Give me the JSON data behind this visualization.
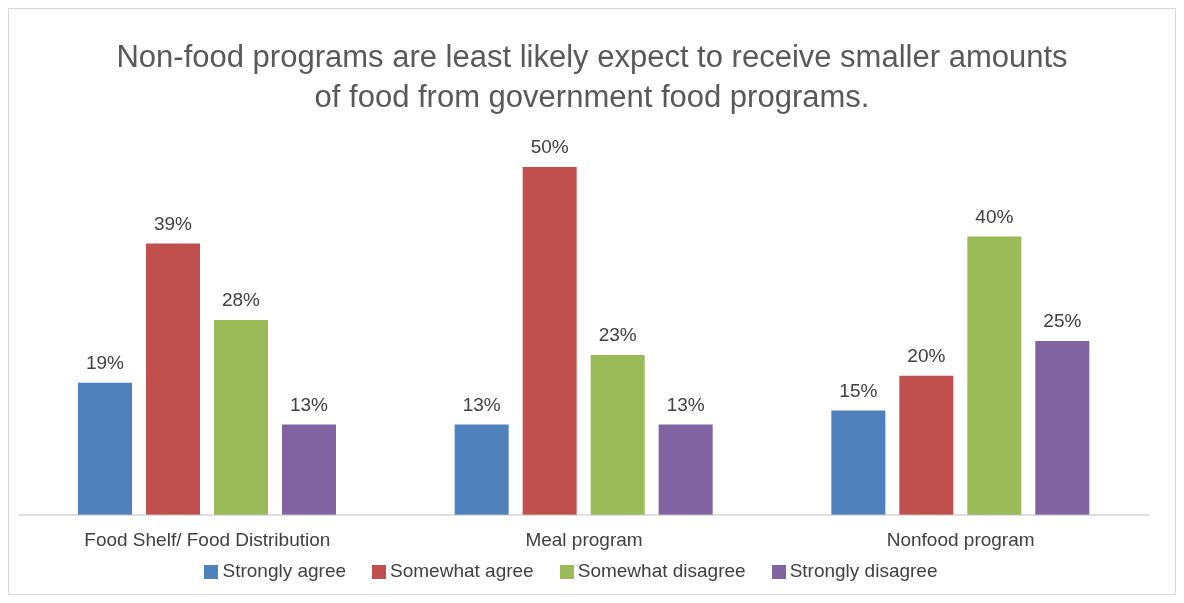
{
  "chart_data": {
    "type": "bar",
    "title": "Non-food programs are least likely expect to receive smaller amounts of food from government food programs.",
    "categories": [
      "Food Shelf/ Food Distribution",
      "Meal program",
      "Nonfood program"
    ],
    "series": [
      {
        "name": "Strongly agree",
        "color": "#4f81bd",
        "values": [
          19,
          13,
          15
        ],
        "value_labels": [
          "19%",
          "13%",
          "15%"
        ]
      },
      {
        "name": "Somewhat agree",
        "color": "#c0504d",
        "values": [
          39,
          50,
          20
        ],
        "value_labels": [
          "39%",
          "50%",
          "20%"
        ]
      },
      {
        "name": "Somewhat disagree",
        "color": "#9bbb59",
        "values": [
          28,
          23,
          40
        ],
        "value_labels": [
          "28%",
          "23%",
          "40%"
        ]
      },
      {
        "name": "Strongly disagree",
        "color": "#8064a2",
        "values": [
          13,
          13,
          25
        ],
        "value_labels": [
          "13%",
          "13%",
          "25%"
        ]
      }
    ],
    "legend": "bottom",
    "grid": false
  }
}
